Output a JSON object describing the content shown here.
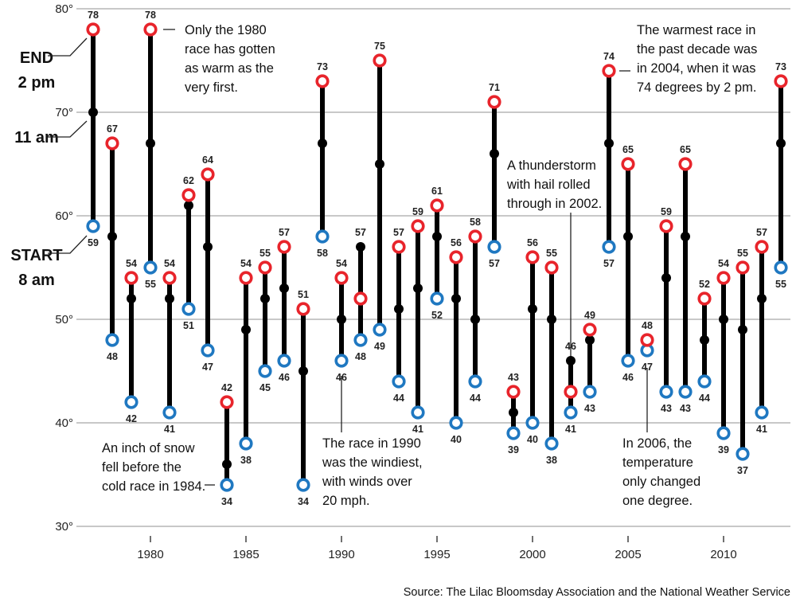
{
  "chart_data": {
    "type": "line",
    "subtype": "dot-range (start / 11 am / end per year)",
    "title": "",
    "xlabel": "",
    "ylabel": "",
    "ylim": [
      30,
      80
    ],
    "y_ticks": [
      30,
      40,
      50,
      60,
      70,
      80
    ],
    "y_tick_labels": [
      "30°",
      "40°",
      "50°",
      "60°",
      "70°",
      "80°"
    ],
    "x_ticks": [
      1980,
      1985,
      1990,
      1995,
      2000,
      2005,
      2010
    ],
    "x_tick_labels": [
      "1980",
      "1985",
      "1990",
      "1995",
      "2000",
      "2005",
      "2010"
    ],
    "xlim": [
      1977,
      2013
    ],
    "grid": true,
    "colors": {
      "start": "#1f78c1",
      "end": "#e8242b",
      "mid": "#000000",
      "grid": "#a6a6a6"
    },
    "series_labels": {
      "end": [
        "END",
        "2 pm"
      ],
      "mid": [
        "11 am"
      ],
      "start": [
        "START",
        "8 am"
      ]
    },
    "x": [
      1977,
      1978,
      1979,
      1980,
      1981,
      1982,
      1983,
      1984,
      1985,
      1986,
      1987,
      1988,
      1989,
      1990,
      1991,
      1992,
      1993,
      1994,
      1995,
      1996,
      1997,
      1998,
      1999,
      2000,
      2001,
      2002,
      2003,
      2004,
      2005,
      2006,
      2007,
      2008,
      2009,
      2010,
      2011,
      2012,
      2013
    ],
    "series": [
      {
        "name": "Start (8 am)",
        "values": [
          59,
          48,
          42,
          55,
          41,
          51,
          47,
          34,
          38,
          45,
          46,
          34,
          58,
          46,
          48,
          49,
          44,
          41,
          52,
          40,
          44,
          57,
          39,
          40,
          38,
          41,
          43,
          57,
          46,
          47,
          43,
          43,
          44,
          39,
          37,
          41,
          55
        ]
      },
      {
        "name": "11 am",
        "values": [
          70,
          58,
          52,
          67,
          52,
          61,
          57,
          36,
          49,
          52,
          53,
          45,
          67,
          50,
          57,
          65,
          51,
          53,
          58,
          52,
          50,
          66,
          41,
          51,
          50,
          46,
          48,
          67,
          58,
          48,
          54,
          58,
          48,
          50,
          49,
          52,
          67
        ]
      },
      {
        "name": "End (2 pm)",
        "values": [
          78,
          67,
          54,
          78,
          54,
          62,
          64,
          42,
          54,
          55,
          57,
          51,
          73,
          54,
          52,
          75,
          57,
          59,
          61,
          56,
          58,
          71,
          43,
          56,
          55,
          43,
          49,
          74,
          65,
          48,
          59,
          65,
          52,
          54,
          55,
          57,
          73
        ]
      }
    ],
    "point_labels": [
      {
        "year": 1977,
        "labels": [
          {
            "v": 78,
            "pos": "above"
          },
          {
            "v": 59,
            "pos": "below"
          }
        ]
      },
      {
        "year": 1978,
        "labels": [
          {
            "v": 67,
            "pos": "above"
          },
          {
            "v": 48,
            "pos": "below"
          }
        ]
      },
      {
        "year": 1979,
        "labels": [
          {
            "v": 54,
            "pos": "above"
          },
          {
            "v": 42,
            "pos": "below"
          }
        ]
      },
      {
        "year": 1980,
        "labels": [
          {
            "v": 78,
            "pos": "above"
          },
          {
            "v": 55,
            "pos": "below"
          }
        ]
      },
      {
        "year": 1981,
        "labels": [
          {
            "v": 54,
            "pos": "above"
          },
          {
            "v": 41,
            "pos": "below"
          }
        ]
      },
      {
        "year": 1982,
        "labels": [
          {
            "v": 62,
            "pos": "above"
          },
          {
            "v": 51,
            "pos": "below"
          }
        ]
      },
      {
        "year": 1983,
        "labels": [
          {
            "v": 64,
            "pos": "above"
          },
          {
            "v": 47,
            "pos": "below"
          }
        ]
      },
      {
        "year": 1984,
        "labels": [
          {
            "v": 42,
            "pos": "above"
          },
          {
            "v": 34,
            "pos": "below"
          }
        ]
      },
      {
        "year": 1985,
        "labels": [
          {
            "v": 54,
            "pos": "above"
          },
          {
            "v": 38,
            "pos": "below"
          }
        ]
      },
      {
        "year": 1986,
        "labels": [
          {
            "v": 55,
            "pos": "above"
          },
          {
            "v": 45,
            "pos": "below"
          }
        ]
      },
      {
        "year": 1987,
        "labels": [
          {
            "v": 57,
            "pos": "above"
          },
          {
            "v": 46,
            "pos": "below"
          }
        ]
      },
      {
        "year": 1988,
        "labels": [
          {
            "v": 51,
            "pos": "above"
          },
          {
            "v": 34,
            "pos": "below"
          }
        ]
      },
      {
        "year": 1989,
        "labels": [
          {
            "v": 73,
            "pos": "above"
          },
          {
            "v": 58,
            "pos": "below"
          }
        ]
      },
      {
        "year": 1990,
        "labels": [
          {
            "v": 54,
            "pos": "above"
          },
          {
            "v": 46,
            "pos": "below"
          }
        ]
      },
      {
        "year": 1991,
        "labels": [
          {
            "v": 57,
            "pos": "above"
          },
          {
            "v": 48,
            "pos": "below"
          }
        ]
      },
      {
        "year": 1992,
        "labels": [
          {
            "v": 75,
            "pos": "above"
          },
          {
            "v": 49,
            "pos": "below"
          }
        ]
      },
      {
        "year": 1993,
        "labels": [
          {
            "v": 57,
            "pos": "above"
          },
          {
            "v": 44,
            "pos": "below"
          }
        ]
      },
      {
        "year": 1994,
        "labels": [
          {
            "v": 59,
            "pos": "above"
          },
          {
            "v": 41,
            "pos": "below"
          }
        ]
      },
      {
        "year": 1995,
        "labels": [
          {
            "v": 61,
            "pos": "above"
          },
          {
            "v": 52,
            "pos": "below"
          }
        ]
      },
      {
        "year": 1996,
        "labels": [
          {
            "v": 56,
            "pos": "above"
          },
          {
            "v": 40,
            "pos": "below"
          }
        ]
      },
      {
        "year": 1997,
        "labels": [
          {
            "v": 58,
            "pos": "above"
          },
          {
            "v": 44,
            "pos": "below"
          }
        ]
      },
      {
        "year": 1998,
        "labels": [
          {
            "v": 71,
            "pos": "above"
          },
          {
            "v": 57,
            "pos": "below"
          }
        ]
      },
      {
        "year": 1999,
        "labels": [
          {
            "v": 43,
            "pos": "above"
          },
          {
            "v": 39,
            "pos": "below"
          }
        ]
      },
      {
        "year": 2000,
        "labels": [
          {
            "v": 56,
            "pos": "above"
          },
          {
            "v": 40,
            "pos": "below"
          }
        ]
      },
      {
        "year": 2001,
        "labels": [
          {
            "v": 55,
            "pos": "above"
          },
          {
            "v": 38,
            "pos": "below"
          }
        ]
      },
      {
        "year": 2002,
        "labels": [
          {
            "v": 46,
            "pos": "above"
          },
          {
            "v": 41,
            "pos": "below"
          }
        ]
      },
      {
        "year": 2003,
        "labels": [
          {
            "v": 49,
            "pos": "above"
          },
          {
            "v": 43,
            "pos": "below"
          }
        ]
      },
      {
        "year": 2004,
        "labels": [
          {
            "v": 74,
            "pos": "above"
          },
          {
            "v": 57,
            "pos": "below"
          }
        ]
      },
      {
        "year": 2005,
        "labels": [
          {
            "v": 65,
            "pos": "above"
          },
          {
            "v": 46,
            "pos": "below"
          }
        ]
      },
      {
        "year": 2006,
        "labels": [
          {
            "v": 48,
            "pos": "above"
          },
          {
            "v": 47,
            "pos": "below"
          }
        ]
      },
      {
        "year": 2007,
        "labels": [
          {
            "v": 59,
            "pos": "above"
          },
          {
            "v": 43,
            "pos": "below"
          }
        ]
      },
      {
        "year": 2008,
        "labels": [
          {
            "v": 65,
            "pos": "above"
          },
          {
            "v": 43,
            "pos": "below"
          }
        ]
      },
      {
        "year": 2009,
        "labels": [
          {
            "v": 52,
            "pos": "above"
          },
          {
            "v": 44,
            "pos": "below"
          }
        ]
      },
      {
        "year": 2010,
        "labels": [
          {
            "v": 54,
            "pos": "above"
          },
          {
            "v": 39,
            "pos": "below"
          }
        ]
      },
      {
        "year": 2011,
        "labels": [
          {
            "v": 55,
            "pos": "above"
          },
          {
            "v": 37,
            "pos": "below"
          }
        ]
      },
      {
        "year": 2012,
        "labels": [
          {
            "v": 57,
            "pos": "above"
          },
          {
            "v": 41,
            "pos": "below"
          }
        ]
      },
      {
        "year": 2013,
        "labels": [
          {
            "v": 73,
            "pos": "above"
          },
          {
            "v": 55,
            "pos": "below"
          }
        ]
      }
    ],
    "annotations": [
      {
        "year": 1980,
        "lines": [
          "Only the 1980",
          "race has gotten",
          "as warm as the",
          "very first."
        ]
      },
      {
        "year": 1984,
        "lines": [
          "An inch of snow",
          "fell before the",
          "cold race in 1984."
        ]
      },
      {
        "year": 1990,
        "lines": [
          "The race in 1990",
          "was the windiest,",
          "with winds over",
          "20 mph."
        ]
      },
      {
        "year": 2002,
        "lines": [
          "A thunderstorm",
          "with hail rolled",
          "through in 2002."
        ]
      },
      {
        "year": 2004,
        "lines": [
          "The warmest race in",
          "the past decade was",
          "in 2004, when it was",
          "74 degrees by 2 pm."
        ]
      },
      {
        "year": 2006,
        "lines": [
          "In 2006, the",
          "temperature",
          "only changed",
          "one degree."
        ]
      }
    ],
    "source": "Source: The Lilac Bloomsday Association and the National Weather Service"
  }
}
